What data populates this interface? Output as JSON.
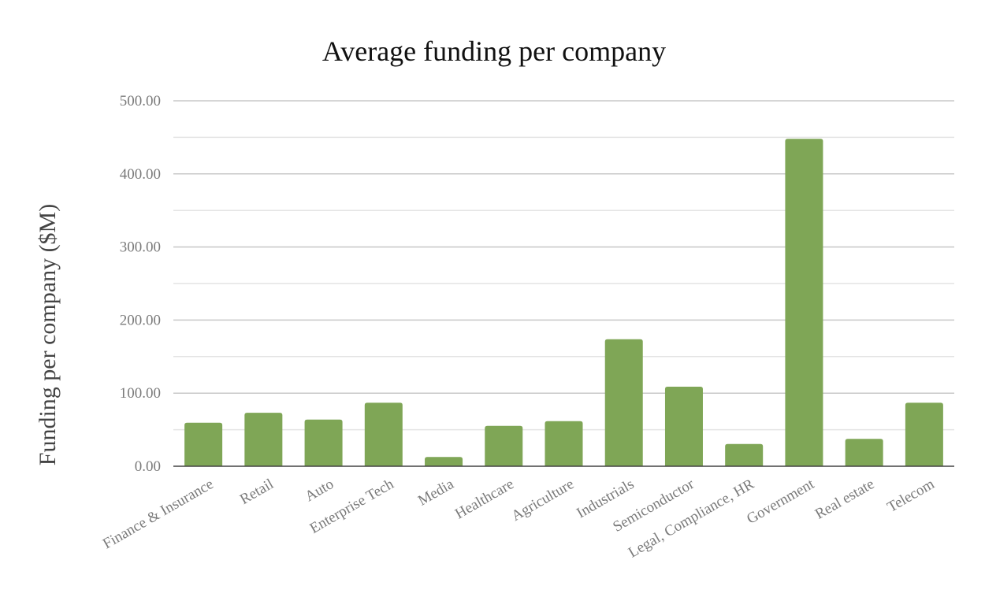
{
  "chart_data": {
    "type": "bar",
    "title": "Average funding per company",
    "xlabel": "",
    "ylabel": "Funding per company ($M)",
    "ylim": [
      0,
      500
    ],
    "yticks": [
      "0.00",
      "100.00",
      "200.00",
      "300.00",
      "400.00",
      "500.00"
    ],
    "grid": true,
    "color": "#7FA656",
    "categories": [
      "Finance & Insurance",
      "Retail",
      "Auto",
      "Enterprise Tech",
      "Media",
      "Healthcare",
      "Agriculture",
      "Industrials",
      "Semiconductor",
      "Legal, Compliance, HR",
      "Government",
      "Real estate",
      "Telecom"
    ],
    "values": [
      59.6,
      73.2,
      63.9,
      86.9,
      12.6,
      55.2,
      61.7,
      173.7,
      108.8,
      30.5,
      448.0,
      37.4,
      86.9
    ]
  }
}
